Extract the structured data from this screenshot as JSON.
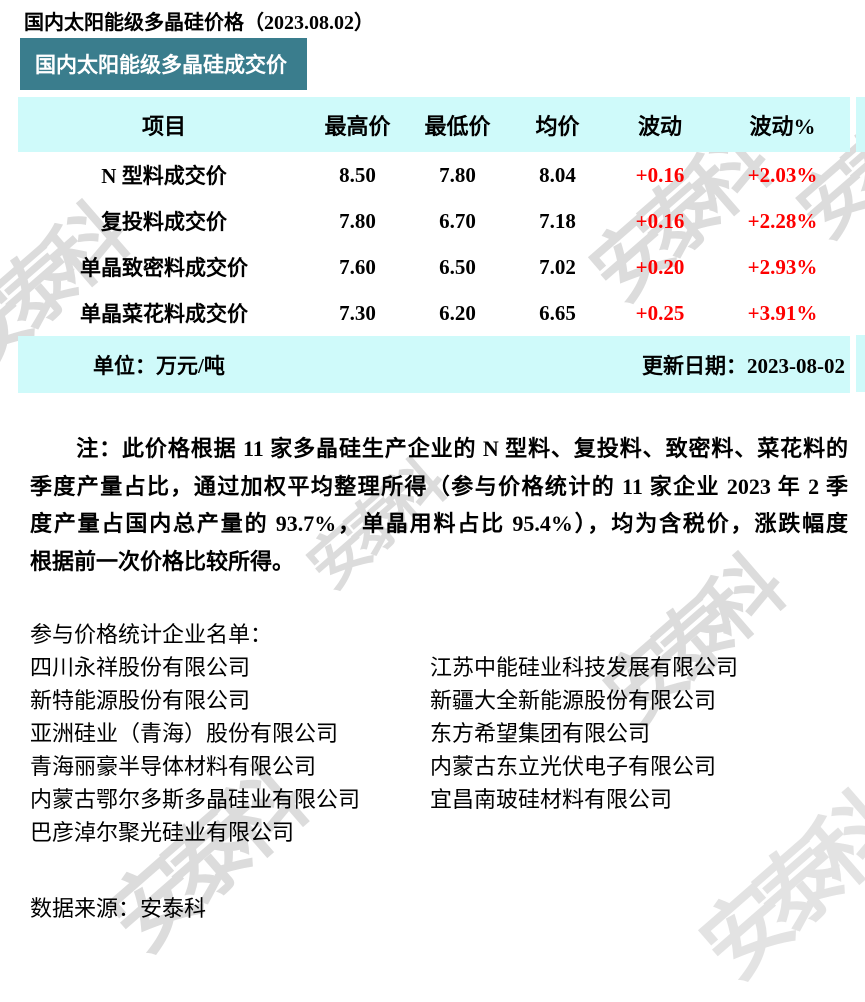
{
  "page": {
    "title": "国内太阳能级多晶硅价格（2023.08.02）",
    "banner": "国内太阳能级多晶硅成交价",
    "source": "数据来源：安泰科",
    "watermark": "安泰科"
  },
  "colors": {
    "banner_bg": "#3a7d8d",
    "band_bg": "#cffafa",
    "change_red": "#fe0000",
    "watermark_gray": "#dcdcdc"
  },
  "table": {
    "headers": [
      "项目",
      "最高价",
      "最低价",
      "均价",
      "波动",
      "波动%"
    ],
    "rows": [
      {
        "item": "N 型料成交价",
        "high": "8.50",
        "low": "7.80",
        "avg": "8.04",
        "change": "+0.16",
        "change_pct": "+2.03%"
      },
      {
        "item": "复投料成交价",
        "high": "7.80",
        "low": "6.70",
        "avg": "7.18",
        "change": "+0.16",
        "change_pct": "+2.28%"
      },
      {
        "item": "单晶致密料成交价",
        "high": "7.60",
        "low": "6.50",
        "avg": "7.02",
        "change": "+0.20",
        "change_pct": "+2.93%"
      },
      {
        "item": "单晶菜花料成交价",
        "high": "7.30",
        "low": "6.20",
        "avg": "6.65",
        "change": "+0.25",
        "change_pct": "+3.91%"
      }
    ],
    "unit_label": "单位：万元/吨",
    "updated_label": "更新日期：2023-08-02"
  },
  "note": {
    "lines": [
      "注：此价格根据 11 家多晶硅生产企业的 N 型料、复投料、致密料、菜花料的",
      "季度产量占比，通过加权平均整理所得（参与价格统计的 11 家企业 2023 年 2 季",
      "度产量占国内总产量的 93.7%，单晶用料占比 95.4%），均为含税价，涨跌幅度",
      "根据前一次价格比较所得。"
    ]
  },
  "participants": {
    "heading": "参与价格统计企业名单：",
    "rows": [
      {
        "left": "四川永祥股份有限公司",
        "right": "江苏中能硅业科技发展有限公司"
      },
      {
        "left": "新特能源股份有限公司",
        "right": "新疆大全新能源股份有限公司"
      },
      {
        "left": "亚洲硅业（青海）股份有限公司",
        "right": "东方希望集团有限公司"
      },
      {
        "left": "青海丽豪半导体材料有限公司",
        "right": "内蒙古东立光伏电子有限公司"
      },
      {
        "left": "内蒙古鄂尔多斯多晶硅业有限公司",
        "right": "宜昌南玻硅材料有限公司"
      },
      {
        "left": "巴彦淖尔聚光硅业有限公司",
        "right": ""
      }
    ]
  }
}
